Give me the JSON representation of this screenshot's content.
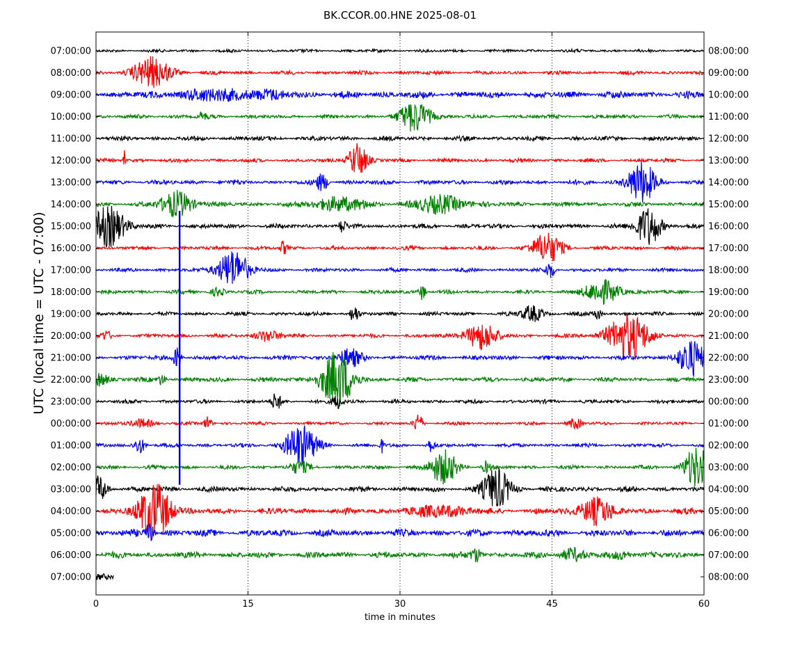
{
  "chart_data": {
    "type": "line",
    "title": "BK.CCOR.00.HNE 2025-08-01",
    "xlabel": "time in minutes",
    "ylabel": "UTC (local time = UTC - 07:00)",
    "xlim": [
      0,
      60
    ],
    "x_ticks": [
      0,
      15,
      30,
      45,
      60
    ],
    "x_tick_labels": [
      "0",
      "15",
      "30",
      "45",
      "60"
    ],
    "grid": "vertical dotted",
    "color_cycle": [
      "#000000",
      "#ff0000",
      "#0000ff",
      "#008000"
    ],
    "rows": [
      {
        "left": "07:00:00",
        "right": "08:00:00",
        "color": "#000000",
        "base": 2,
        "end": 60,
        "events": []
      },
      {
        "left": "08:00:00",
        "right": "09:00:00",
        "color": "#ff0000",
        "base": 2.5,
        "end": 60,
        "events": [
          {
            "t": 5.5,
            "amp": 22,
            "w": 1.8
          }
        ]
      },
      {
        "left": "09:00:00",
        "right": "10:00:00",
        "color": "#0000ff",
        "base": 4.5,
        "end": 60,
        "events": [
          {
            "t": 11,
            "amp": 6,
            "w": 3
          },
          {
            "t": 16,
            "amp": 5,
            "w": 3
          }
        ]
      },
      {
        "left": "10:00:00",
        "right": "11:00:00",
        "color": "#008000",
        "base": 2.5,
        "end": 60,
        "events": [
          {
            "t": 31.5,
            "amp": 22,
            "w": 1.5
          },
          {
            "t": 10.5,
            "amp": 6,
            "w": 0.4
          }
        ]
      },
      {
        "left": "11:00:00",
        "right": "12:00:00",
        "color": "#000000",
        "base": 3,
        "end": 60,
        "events": []
      },
      {
        "left": "12:00:00",
        "right": "13:00:00",
        "color": "#ff0000",
        "base": 2.5,
        "end": 60,
        "events": [
          {
            "t": 25.8,
            "amp": 25,
            "w": 0.9
          },
          {
            "t": 2.8,
            "amp": 14,
            "w": 0.1
          }
        ]
      },
      {
        "left": "13:00:00",
        "right": "14:00:00",
        "color": "#0000ff",
        "base": 3,
        "end": 60,
        "events": [
          {
            "t": 53.8,
            "amp": 30,
            "w": 1.3
          },
          {
            "t": 22.3,
            "amp": 12,
            "w": 0.6
          }
        ]
      },
      {
        "left": "14:00:00",
        "right": "15:00:00",
        "color": "#008000",
        "base": 3,
        "end": 60,
        "events": [
          {
            "t": 8,
            "amp": 18,
            "w": 1.6
          },
          {
            "t": 24,
            "amp": 10,
            "w": 2.5
          },
          {
            "t": 34,
            "amp": 12,
            "w": 2.5
          }
        ]
      },
      {
        "left": "15:00:00",
        "right": "16:00:00",
        "color": "#000000",
        "base": 3,
        "end": 60,
        "events": [
          {
            "t": 1.2,
            "amp": 30,
            "w": 1.6
          },
          {
            "t": 54.5,
            "amp": 28,
            "w": 1.2
          },
          {
            "t": 24.3,
            "amp": 10,
            "w": 0.3
          }
        ]
      },
      {
        "left": "16:00:00",
        "right": "17:00:00",
        "color": "#ff0000",
        "base": 2.5,
        "end": 60,
        "events": [
          {
            "t": 44.5,
            "amp": 22,
            "w": 1.4
          },
          {
            "t": 18.5,
            "amp": 10,
            "w": 0.3
          }
        ]
      },
      {
        "left": "17:00:00",
        "right": "18:00:00",
        "color": "#0000ff",
        "base": 2.5,
        "end": 60,
        "events": [
          {
            "t": 13.5,
            "amp": 28,
            "w": 1.5
          },
          {
            "t": 44.8,
            "amp": 12,
            "w": 0.4
          }
        ]
      },
      {
        "left": "18:00:00",
        "right": "19:00:00",
        "color": "#008000",
        "base": 2.5,
        "end": 60,
        "events": [
          {
            "t": 50,
            "amp": 16,
            "w": 1.8
          },
          {
            "t": 32.2,
            "amp": 12,
            "w": 0.3
          },
          {
            "t": 12,
            "amp": 6,
            "w": 0.6
          }
        ]
      },
      {
        "left": "19:00:00",
        "right": "20:00:00",
        "color": "#000000",
        "base": 2.5,
        "end": 60,
        "events": [
          {
            "t": 25.5,
            "amp": 12,
            "w": 0.4
          },
          {
            "t": 43,
            "amp": 12,
            "w": 1
          },
          {
            "t": 49.5,
            "amp": 8,
            "w": 0.4
          }
        ]
      },
      {
        "left": "20:00:00",
        "right": "21:00:00",
        "color": "#ff0000",
        "base": 2.5,
        "end": 60,
        "events": [
          {
            "t": 52.5,
            "amp": 32,
            "w": 2
          },
          {
            "t": 38,
            "amp": 20,
            "w": 1.5
          },
          {
            "t": 17,
            "amp": 8,
            "w": 1.2
          },
          {
            "t": 1,
            "amp": 6,
            "w": 0.5
          }
        ]
      },
      {
        "left": "21:00:00",
        "right": "22:00:00",
        "color": "#0000ff",
        "base": 3,
        "end": 60,
        "events": [
          {
            "t": 58.7,
            "amp": 25,
            "w": 1.3
          },
          {
            "t": 25,
            "amp": 12,
            "w": 1.2
          },
          {
            "t": 8,
            "amp": 15,
            "w": 0.4
          }
        ]
      },
      {
        "left": "22:00:00",
        "right": "23:00:00",
        "color": "#008000",
        "base": 3,
        "end": 60,
        "events": [
          {
            "t": 23.8,
            "amp": 40,
            "w": 1.6
          },
          {
            "t": 0.3,
            "amp": 10,
            "w": 0.8
          },
          {
            "t": 6.5,
            "amp": 8,
            "w": 0.4
          }
        ]
      },
      {
        "left": "23:00:00",
        "right": "00:00:00",
        "color": "#000000",
        "base": 2.5,
        "end": 60,
        "events": [
          {
            "t": 17.8,
            "amp": 14,
            "w": 0.4
          },
          {
            "t": 23.8,
            "amp": 10,
            "w": 0.5
          }
        ]
      },
      {
        "left": "00:00:00",
        "right": "01:00:00",
        "color": "#ff0000",
        "base": 2,
        "end": 60,
        "events": [
          {
            "t": 31.8,
            "amp": 16,
            "w": 0.4
          },
          {
            "t": 11,
            "amp": 10,
            "w": 0.4
          },
          {
            "t": 47.3,
            "amp": 8,
            "w": 0.6
          },
          {
            "t": 4.5,
            "amp": 6,
            "w": 1.2
          }
        ]
      },
      {
        "left": "01:00:00",
        "right": "02:00:00",
        "color": "#0000ff",
        "base": 2.5,
        "end": 60,
        "events": [
          {
            "t": 20.2,
            "amp": 30,
            "w": 1.5
          },
          {
            "t": 4.3,
            "amp": 12,
            "w": 0.5
          },
          {
            "t": 28.2,
            "amp": 10,
            "w": 0.2
          },
          {
            "t": 33,
            "amp": 8,
            "w": 0.4
          }
        ]
      },
      {
        "left": "02:00:00",
        "right": "03:00:00",
        "color": "#008000",
        "base": 2.5,
        "end": 60,
        "events": [
          {
            "t": 34.3,
            "amp": 24,
            "w": 1.3
          },
          {
            "t": 59.3,
            "amp": 30,
            "w": 1.2
          },
          {
            "t": 20,
            "amp": 8,
            "w": 1
          },
          {
            "t": 38.5,
            "amp": 8,
            "w": 0.4
          }
        ]
      },
      {
        "left": "03:00:00",
        "right": "04:00:00",
        "color": "#000000",
        "base": 3.5,
        "end": 60,
        "events": [
          {
            "t": 39.5,
            "amp": 30,
            "w": 1.3
          },
          {
            "t": 0.3,
            "amp": 18,
            "w": 0.8
          }
        ]
      },
      {
        "left": "04:00:00",
        "right": "05:00:00",
        "color": "#ff0000",
        "base": 4,
        "end": 60,
        "events": [
          {
            "t": 5.8,
            "amp": 40,
            "w": 1.6
          },
          {
            "t": 49.3,
            "amp": 20,
            "w": 1.5
          },
          {
            "t": 34,
            "amp": 8,
            "w": 2.5
          }
        ]
      },
      {
        "left": "05:00:00",
        "right": "06:00:00",
        "color": "#0000ff",
        "base": 4.5,
        "end": 60,
        "events": [
          {
            "t": 5.3,
            "amp": 14,
            "w": 0.4
          }
        ]
      },
      {
        "left": "06:00:00",
        "right": "07:00:00",
        "color": "#008000",
        "base": 4,
        "end": 60,
        "events": [
          {
            "t": 37.5,
            "amp": 10,
            "w": 0.5
          },
          {
            "t": 47,
            "amp": 8,
            "w": 1.2
          },
          {
            "t": 52,
            "amp": 6,
            "w": 0.8
          }
        ]
      },
      {
        "left": "07:00:00",
        "right": "08:00:00",
        "color": "#000000",
        "base": 4,
        "end": 1.8,
        "events": []
      }
    ],
    "spike": {
      "t": 8.25,
      "color": "#0000ff",
      "from_row": 7.3,
      "to_row": 19.8
    }
  }
}
